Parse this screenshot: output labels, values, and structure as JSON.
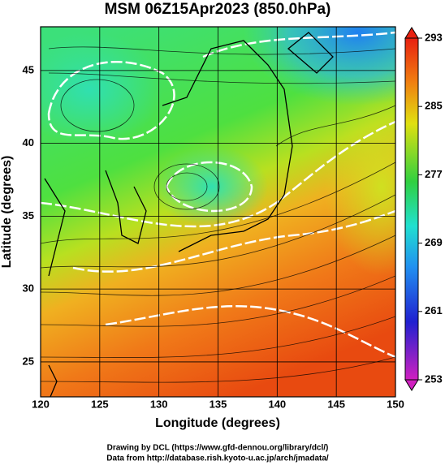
{
  "title": "MSM 06Z15Apr2023 (850.0hPa)",
  "map": {
    "x_label": "Longitude (degrees)",
    "y_label": "Latitude  (degrees)",
    "xlim": [
      120,
      150
    ],
    "ylim": [
      22.6,
      48
    ],
    "xticks": [
      120,
      125,
      130,
      135,
      140,
      145,
      150
    ],
    "yticks": [
      25,
      30,
      35,
      40,
      45
    ]
  },
  "colorbar": {
    "lim": [
      253,
      293
    ],
    "ticks": [
      253,
      261,
      269,
      277,
      285,
      293
    ]
  },
  "footer": [
    "Drawing by DCL (https://www.gfd-dennou.org/library/dcl/)",
    "Data from http://database.rish.kyoto-u.ac.jp/arch/jmadata/"
  ]
}
